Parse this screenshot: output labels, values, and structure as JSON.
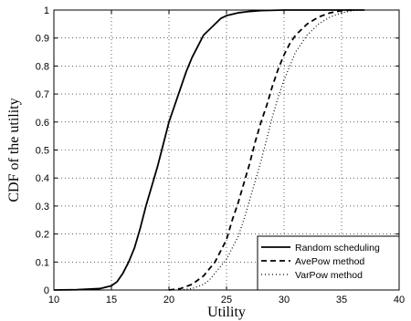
{
  "chart_data": {
    "type": "line",
    "title": "",
    "xlabel": "Utility",
    "ylabel": "CDF of the utility",
    "xlim": [
      10,
      40
    ],
    "ylim": [
      0,
      1
    ],
    "xticks": [
      10,
      15,
      20,
      25,
      30,
      35,
      40
    ],
    "yticks": [
      0,
      0.1,
      0.2,
      0.3,
      0.4,
      0.5,
      0.6,
      0.7,
      0.8,
      0.9,
      1
    ],
    "grid": true,
    "legend_position": "bottom-right",
    "series": [
      {
        "name": "Random scheduling",
        "style": "solid",
        "color": "#000000",
        "x": [
          10,
          12,
          14,
          15,
          15.5,
          16,
          16.5,
          17,
          17.5,
          18,
          18.5,
          19,
          19.5,
          20,
          20.5,
          21,
          21.5,
          22,
          22.5,
          23,
          23.5,
          24,
          24.5,
          25,
          26,
          27,
          28,
          30,
          34,
          37
        ],
        "y": [
          0,
          0.001,
          0.005,
          0.015,
          0.03,
          0.06,
          0.1,
          0.15,
          0.22,
          0.3,
          0.37,
          0.44,
          0.52,
          0.6,
          0.66,
          0.72,
          0.78,
          0.83,
          0.87,
          0.91,
          0.93,
          0.95,
          0.97,
          0.98,
          0.99,
          0.995,
          0.998,
          1,
          1,
          1
        ]
      },
      {
        "name": "AvePow method",
        "style": "dashed",
        "color": "#000000",
        "x": [
          20,
          21,
          22,
          22.5,
          23,
          23.5,
          24,
          24.5,
          25,
          25.5,
          26,
          26.5,
          27,
          27.5,
          28,
          28.5,
          29,
          29.5,
          30,
          30.5,
          31,
          32,
          33,
          34,
          35,
          36
        ],
        "y": [
          0,
          0.005,
          0.02,
          0.035,
          0.05,
          0.075,
          0.1,
          0.14,
          0.18,
          0.25,
          0.31,
          0.38,
          0.45,
          0.53,
          0.6,
          0.66,
          0.73,
          0.79,
          0.84,
          0.88,
          0.91,
          0.95,
          0.975,
          0.99,
          0.998,
          1
        ]
      },
      {
        "name": "VarPow method",
        "style": "dotted",
        "color": "#000000",
        "x": [
          21,
          22,
          23,
          23.5,
          24,
          24.5,
          25,
          25.5,
          26,
          26.5,
          27,
          27.5,
          28,
          28.5,
          29,
          29.5,
          30,
          30.5,
          31,
          32,
          33,
          34,
          35,
          36,
          37
        ],
        "y": [
          0,
          0.005,
          0.02,
          0.035,
          0.06,
          0.085,
          0.11,
          0.15,
          0.19,
          0.25,
          0.32,
          0.39,
          0.46,
          0.54,
          0.62,
          0.69,
          0.75,
          0.8,
          0.85,
          0.91,
          0.95,
          0.975,
          0.99,
          0.998,
          1
        ]
      }
    ]
  }
}
